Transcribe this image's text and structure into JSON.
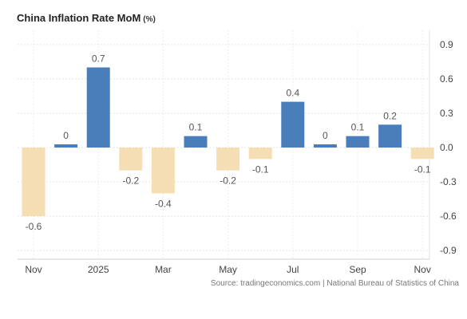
{
  "chart_data": {
    "type": "bar",
    "title": "China Inflation Rate MoM",
    "unit": "(%)",
    "categories": [
      "Nov 2024",
      "Dec 2024",
      "Jan 2025",
      "Feb 2025",
      "Mar 2025",
      "Apr 2025",
      "May 2025",
      "Jun 2025",
      "Jul 2025",
      "Aug 2025",
      "Sep 2025",
      "Oct 2025",
      "Nov 2025"
    ],
    "values": [
      -0.6,
      0.0,
      0.7,
      -0.2,
      -0.4,
      0.1,
      -0.2,
      -0.1,
      0.4,
      0.0,
      0.1,
      0.2,
      -0.1
    ],
    "data_labels": [
      "-0.6",
      "0",
      "0.7",
      "-0.2",
      "-0.4",
      "0.1",
      "-0.2",
      "-0.1",
      "0.4",
      "0",
      "0.1",
      "0.2",
      "-0.1"
    ],
    "x_tick_labels": [
      {
        "index": 0,
        "label": "Nov"
      },
      {
        "index": 2,
        "label": "2025"
      },
      {
        "index": 4,
        "label": "Mar"
      },
      {
        "index": 6,
        "label": "May"
      },
      {
        "index": 8,
        "label": "Jul"
      },
      {
        "index": 10,
        "label": "Sep"
      },
      {
        "index": 12,
        "label": "Nov"
      }
    ],
    "y_ticks": [
      0.9,
      0.6,
      0.3,
      0.0,
      -0.3,
      -0.6,
      -0.9
    ],
    "y_tick_labels": [
      "0.9",
      "0.6",
      "0.3",
      "0.0",
      "-0.3",
      "-0.6",
      "-0.9"
    ],
    "ylim": [
      -1.0,
      1.0
    ],
    "y_axis_side": "right",
    "grid": true,
    "colors": {
      "positive": "#4a7ebb",
      "negative": "#f5deb3"
    }
  },
  "source": "Source: tradingeconomics.com | National Bureau of Statistics of China"
}
